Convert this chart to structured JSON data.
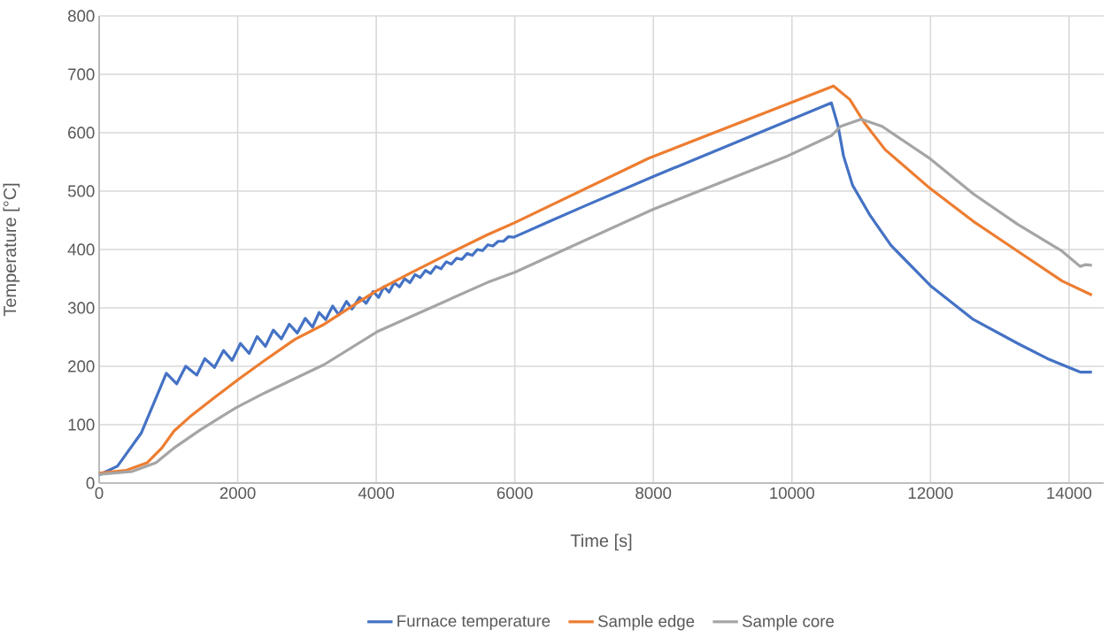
{
  "chart_data": {
    "type": "line",
    "xlabel": "Time [s]",
    "ylabel": "Temperature [°C]",
    "xlim": [
      0,
      14500
    ],
    "ylim": [
      0,
      800
    ],
    "xticks": [
      0,
      2000,
      4000,
      6000,
      8000,
      10000,
      12000,
      14000
    ],
    "yticks": [
      0,
      100,
      200,
      300,
      400,
      500,
      600,
      700,
      800
    ],
    "grid": true,
    "legend": "bottom",
    "marker": "none",
    "line_style": "solid",
    "series": [
      {
        "name": "Furnace temperature",
        "color": "#4472c4",
        "x": [
          0,
          265,
          610,
          970,
          1120,
          1250,
          1410,
          1525,
          1665,
          1795,
          1920,
          2040,
          2165,
          2280,
          2400,
          2515,
          2630,
          2745,
          2860,
          2975,
          3080,
          3175,
          3270,
          3370,
          3460,
          3570,
          3650,
          3760,
          3855,
          3955,
          4035,
          4110,
          4185,
          4260,
          4335,
          4410,
          4485,
          4560,
          4635,
          4710,
          4785,
          4860,
          4935,
          5010,
          5085,
          5160,
          5235,
          5310,
          5385,
          5460,
          5535,
          5610,
          5685,
          5760,
          5835,
          5910,
          5985,
          6500,
          7000,
          8000,
          10570,
          10665,
          10745,
          10875,
          11130,
          11430,
          12000,
          12620,
          13260,
          13690,
          14160,
          14330
        ],
        "values": [
          14,
          29,
          86,
          188,
          170,
          200,
          185,
          213,
          198,
          227,
          210,
          239,
          222,
          251,
          234,
          262,
          247,
          272,
          257,
          282,
          267,
          292,
          280,
          303,
          288,
          311,
          298,
          318,
          308,
          328,
          318,
          336,
          327,
          343,
          336,
          350,
          343,
          357,
          352,
          364,
          359,
          371,
          367,
          379,
          375,
          385,
          383,
          393,
          390,
          400,
          398,
          408,
          406,
          414,
          414,
          422,
          421,
          448,
          474,
          525,
          651,
          612,
          560,
          510,
          458,
          407,
          338,
          280,
          239,
          213,
          190,
          190
        ]
      },
      {
        "name": "Sample edge",
        "color": "#ed7d31",
        "x": [
          0,
          395,
          695,
          905,
          1080,
          1335,
          1670,
          2015,
          2400,
          2825,
          3250,
          3680,
          4000,
          4500,
          5000,
          5600,
          6000,
          7930,
          10600,
          10835,
          11045,
          11345,
          12000,
          12620,
          13260,
          13900,
          14330
        ],
        "values": [
          17,
          22,
          35,
          60,
          89,
          116,
          147,
          178,
          211,
          246,
          272,
          305,
          329,
          360,
          390,
          425,
          446,
          556,
          680,
          657,
          617,
          571,
          504,
          448,
          397,
          346,
          322
        ]
      },
      {
        "name": "Sample core",
        "color": "#a5a5a5",
        "x": [
          0,
          480,
          820,
          1080,
          1460,
          1975,
          2400,
          3250,
          4010,
          5595,
          6000,
          8000,
          9935,
          10570,
          10705,
          11000,
          11300,
          12000,
          12620,
          13260,
          13900,
          14160,
          14240,
          14330
        ],
        "values": [
          15,
          20,
          35,
          60,
          91,
          129,
          155,
          203,
          259,
          343,
          361,
          469,
          560,
          595,
          611,
          623,
          611,
          555,
          495,
          443,
          397,
          371,
          374,
          373
        ]
      }
    ]
  }
}
